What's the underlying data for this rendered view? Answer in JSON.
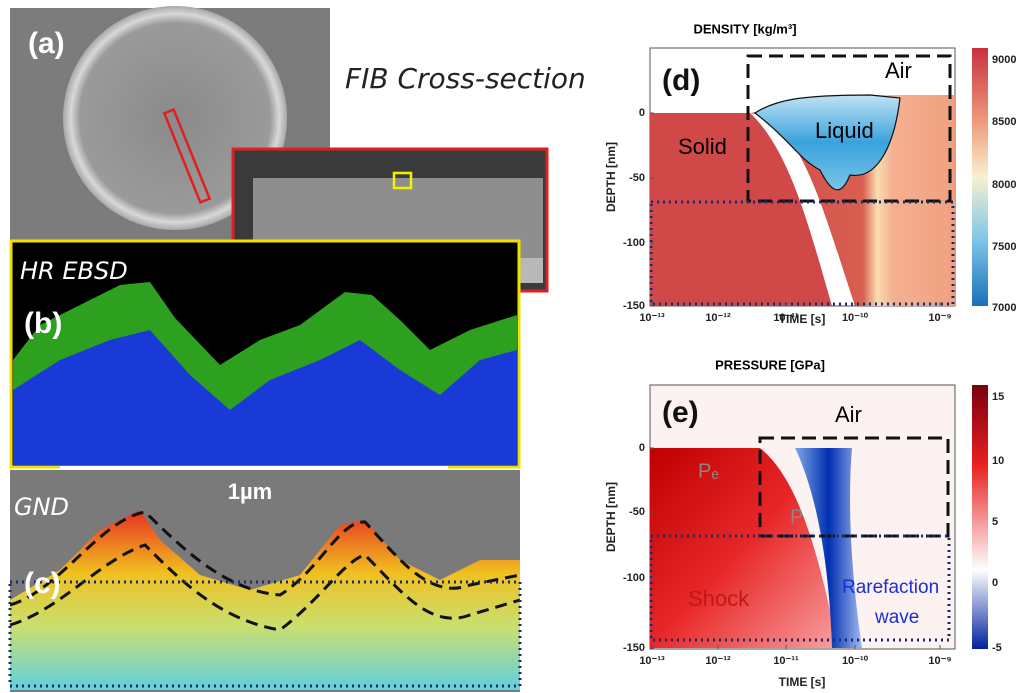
{
  "panel_a": {
    "label": "(a)",
    "annotation": "FIB Cross-section"
  },
  "panel_b": {
    "label": "(b)",
    "annotation": "HR EBSD",
    "scale_bar": "1µm"
  },
  "panel_c": {
    "label": "(c)",
    "annotation": "GND"
  },
  "panel_d": {
    "label": "(d)",
    "title": "DENSITY [kg/m³]",
    "x_label": "TIME [s]",
    "y_label": "DEPTH [nm]",
    "x_ticks": [
      "10⁻¹³",
      "10⁻¹²",
      "10⁻¹¹",
      "10⁻¹⁰",
      "10⁻⁹"
    ],
    "y_ticks": [
      "0",
      "-50",
      "-100",
      "-150"
    ],
    "colorbar_ticks": [
      "9000",
      "8500",
      "8000",
      "7500",
      "7000"
    ],
    "regions": [
      "Air",
      "Solid",
      "Liquid"
    ]
  },
  "panel_e": {
    "label": "(e)",
    "title": "PRESSURE [GPa]",
    "x_label": "TIME [s]",
    "y_label": "DEPTH [nm]",
    "x_ticks": [
      "10⁻¹³",
      "10⁻¹²",
      "10⁻¹¹",
      "10⁻¹⁰",
      "10⁻⁹"
    ],
    "y_ticks": [
      "0",
      "-50",
      "-100",
      "-150"
    ],
    "colorbar_ticks": [
      "15",
      "10",
      "5",
      "0",
      "-5"
    ],
    "regions": [
      "Air",
      "Pₑ",
      "P",
      "Shock",
      "Rarefaction",
      "wave"
    ]
  }
}
